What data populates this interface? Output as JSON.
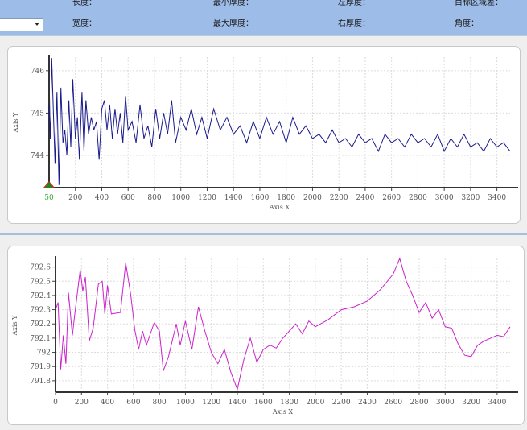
{
  "header": {
    "row1": [
      "长度：",
      "最小厚度：",
      "左厚度：",
      "目标区域差："
    ],
    "row2": [
      "宽度：",
      "最大厚度：",
      "右厚度：",
      "角度："
    ],
    "combo_value": ""
  },
  "chart_data": [
    {
      "type": "line",
      "name": "top-chart",
      "xlabel": "Axis X",
      "ylabel": "Axis Y",
      "xlim": [
        0,
        3500
      ],
      "ylim": [
        743.24,
        746.32
      ],
      "xticks": [
        200,
        400,
        600,
        800,
        1000,
        1200,
        1400,
        1600,
        1800,
        2000,
        2200,
        2400,
        2600,
        2800,
        3000,
        3200,
        3400
      ],
      "yticks": [
        744,
        745,
        746
      ],
      "marker_label": "50",
      "color": "#1a1a8c",
      "x": [
        0,
        10,
        20,
        30,
        45,
        60,
        75,
        90,
        105,
        120,
        135,
        150,
        165,
        180,
        200,
        215,
        230,
        250,
        265,
        280,
        300,
        320,
        340,
        360,
        380,
        400,
        420,
        440,
        460,
        480,
        500,
        520,
        540,
        560,
        580,
        600,
        630,
        660,
        690,
        720,
        750,
        780,
        810,
        840,
        870,
        900,
        930,
        960,
        1000,
        1040,
        1080,
        1120,
        1160,
        1200,
        1250,
        1300,
        1350,
        1400,
        1450,
        1500,
        1550,
        1600,
        1650,
        1700,
        1750,
        1800,
        1850,
        1900,
        1950,
        2000,
        2050,
        2100,
        2150,
        2200,
        2250,
        2300,
        2350,
        2400,
        2450,
        2500,
        2550,
        2600,
        2650,
        2700,
        2750,
        2800,
        2850,
        2900,
        2950,
        3000,
        3050,
        3100,
        3150,
        3200,
        3250,
        3300,
        3350,
        3400,
        3450,
        3500
      ],
      "y": [
        745.2,
        744.4,
        746.3,
        745.3,
        743.8,
        745.5,
        743.3,
        745.6,
        744.3,
        744.6,
        744.0,
        745.3,
        744.2,
        745.8,
        744.4,
        744.9,
        743.9,
        745.5,
        744.1,
        745.3,
        744.5,
        744.9,
        744.6,
        744.8,
        743.9,
        745.1,
        745.3,
        744.6,
        745.2,
        744.4,
        745.1,
        744.5,
        745.0,
        744.3,
        745.4,
        744.6,
        744.8,
        744.3,
        745.2,
        744.4,
        744.7,
        744.2,
        745.1,
        744.4,
        745.0,
        744.5,
        745.3,
        744.3,
        744.9,
        744.6,
        745.1,
        744.5,
        744.9,
        744.4,
        745.1,
        744.6,
        744.9,
        744.5,
        744.7,
        744.3,
        744.8,
        744.4,
        744.9,
        744.5,
        744.8,
        744.3,
        744.9,
        744.5,
        744.7,
        744.4,
        744.5,
        744.3,
        744.6,
        744.3,
        744.4,
        744.2,
        744.5,
        744.3,
        744.4,
        744.1,
        744.5,
        744.3,
        744.4,
        744.2,
        744.5,
        744.3,
        744.4,
        744.2,
        744.5,
        744.1,
        744.4,
        744.2,
        744.5,
        744.2,
        744.3,
        744.1,
        744.4,
        744.2,
        744.3,
        744.1
      ]
    },
    {
      "type": "line",
      "name": "bottom-chart",
      "xlabel": "Axis X",
      "ylabel": "Axis Y",
      "xlim": [
        0,
        3500
      ],
      "ylim": [
        791.72,
        792.66
      ],
      "xticks": [
        0,
        200,
        400,
        600,
        800,
        1000,
        1200,
        1400,
        1600,
        1800,
        2000,
        2200,
        2400,
        2600,
        2800,
        3000,
        3200,
        3400
      ],
      "yticks": [
        791.8,
        791.9,
        792,
        792.1,
        792.2,
        792.3,
        792.4,
        792.5,
        792.6
      ],
      "color": "#cc22cc",
      "x": [
        0,
        20,
        40,
        60,
        80,
        100,
        130,
        150,
        190,
        210,
        230,
        260,
        290,
        330,
        360,
        380,
        400,
        430,
        500,
        540,
        580,
        610,
        640,
        670,
        700,
        760,
        800,
        830,
        870,
        930,
        960,
        1000,
        1050,
        1100,
        1150,
        1200,
        1250,
        1300,
        1350,
        1400,
        1450,
        1500,
        1550,
        1600,
        1650,
        1700,
        1750,
        1800,
        1850,
        1900,
        1950,
        2000,
        2100,
        2200,
        2300,
        2400,
        2500,
        2600,
        2650,
        2700,
        2750,
        2800,
        2850,
        2900,
        2950,
        3000,
        3050,
        3100,
        3150,
        3200,
        3250,
        3300,
        3350,
        3400,
        3450,
        3500
      ],
      "y": [
        792.3,
        792.35,
        791.88,
        792.12,
        791.92,
        792.42,
        792.12,
        792.28,
        792.58,
        792.43,
        792.53,
        792.08,
        792.17,
        792.48,
        792.5,
        792.27,
        792.47,
        792.27,
        792.28,
        792.63,
        792.4,
        792.16,
        792.02,
        792.15,
        792.05,
        792.21,
        792.15,
        791.87,
        791.97,
        792.2,
        792.05,
        792.22,
        792.02,
        792.32,
        792.15,
        792.0,
        791.92,
        792.02,
        791.86,
        791.74,
        791.95,
        792.1,
        791.93,
        792.02,
        792.05,
        792.03,
        792.1,
        792.15,
        792.2,
        792.13,
        792.22,
        792.18,
        792.23,
        792.3,
        792.32,
        792.36,
        792.44,
        792.55,
        792.66,
        792.5,
        792.4,
        792.28,
        792.35,
        792.24,
        792.3,
        792.18,
        792.17,
        792.06,
        791.98,
        791.97,
        792.05,
        792.08,
        792.1,
        792.12,
        792.11,
        792.18
      ]
    }
  ]
}
